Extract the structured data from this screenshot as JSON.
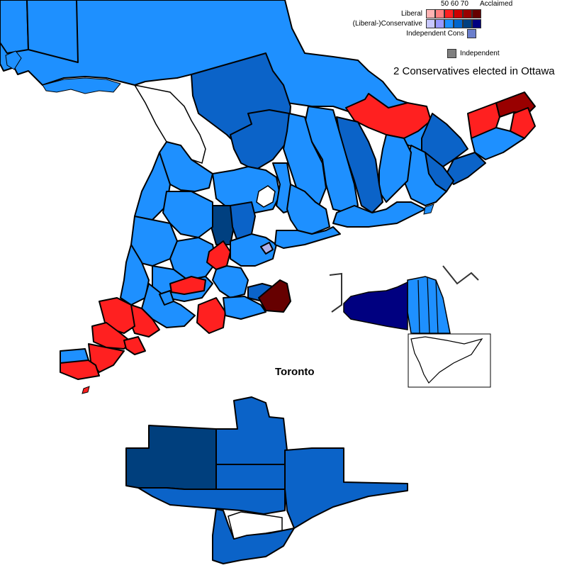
{
  "legend": {
    "header_numbers": "50 60 70",
    "header_acclaimed": "Acclaimed",
    "rows": [
      {
        "label": "Liberal",
        "colors": [
          "#ffb3b3",
          "#ff8080",
          "#ff2020",
          "#cc0000",
          "#990000",
          "#660000"
        ]
      },
      {
        "label": "(Liberal-)Conservative",
        "colors": [
          "#c8c8ff",
          "#9999ff",
          "#1e90ff",
          "#0066cc",
          "#004080",
          "#000080"
        ]
      },
      {
        "label": "Independent Cons",
        "colors": [
          "#6b7fcc"
        ]
      },
      {
        "label": "Independent",
        "colors": [
          "#808080"
        ]
      }
    ]
  },
  "note": "2 Conservatives elected in Ottawa",
  "inset_title": "Toronto",
  "colors": {
    "cons_light": "#1e90ff",
    "cons_mid": "#0b63c8",
    "cons_dark": "#003f7d",
    "cons_navy": "#000080",
    "lib": "#ff2020",
    "lib_dark": "#990000",
    "lib_darkest": "#660000",
    "indep_cons": "#b0b0e8",
    "water": "#ffffff"
  }
}
